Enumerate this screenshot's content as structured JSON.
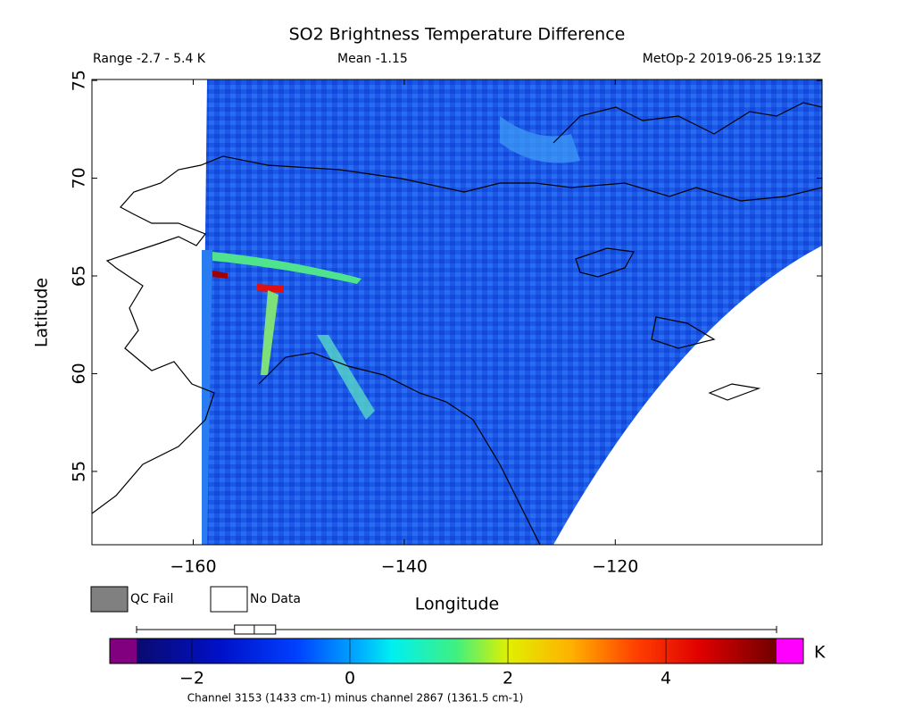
{
  "title": "SO2 Brightness Temperature Difference",
  "header": {
    "range": "Range -2.7 - 5.4 K",
    "mean": "Mean -1.15",
    "source": "MetOp-2 2019-06-25 19:13Z"
  },
  "map": {
    "xlabel": "Longitude",
    "ylabel": "Latitude",
    "xlim": [
      -169.6,
      -100.4
    ],
    "ylim": [
      51.25,
      75.05
    ],
    "xticks": [
      {
        "value": -160,
        "label": "−160"
      },
      {
        "value": -140,
        "label": "−140"
      },
      {
        "value": -120,
        "label": "−120"
      }
    ],
    "yticks": [
      55,
      60,
      65,
      70,
      75
    ]
  },
  "legend": {
    "qc_fail": "QC Fail",
    "no_data": "No Data"
  },
  "colorbar": {
    "lim": [
      -2.7,
      5.4
    ],
    "ticks": [
      {
        "value": -2,
        "label": "−2"
      },
      0,
      2,
      4
    ],
    "unit": "K",
    "box": {
      "low": -2.7,
      "q1": -1.46,
      "median": -1.21,
      "q3": -0.94,
      "high": 5.4
    }
  },
  "footnote": "Channel 3153 (1433 cm-1) minus channel 2867 (1361.5 cm-1)"
}
